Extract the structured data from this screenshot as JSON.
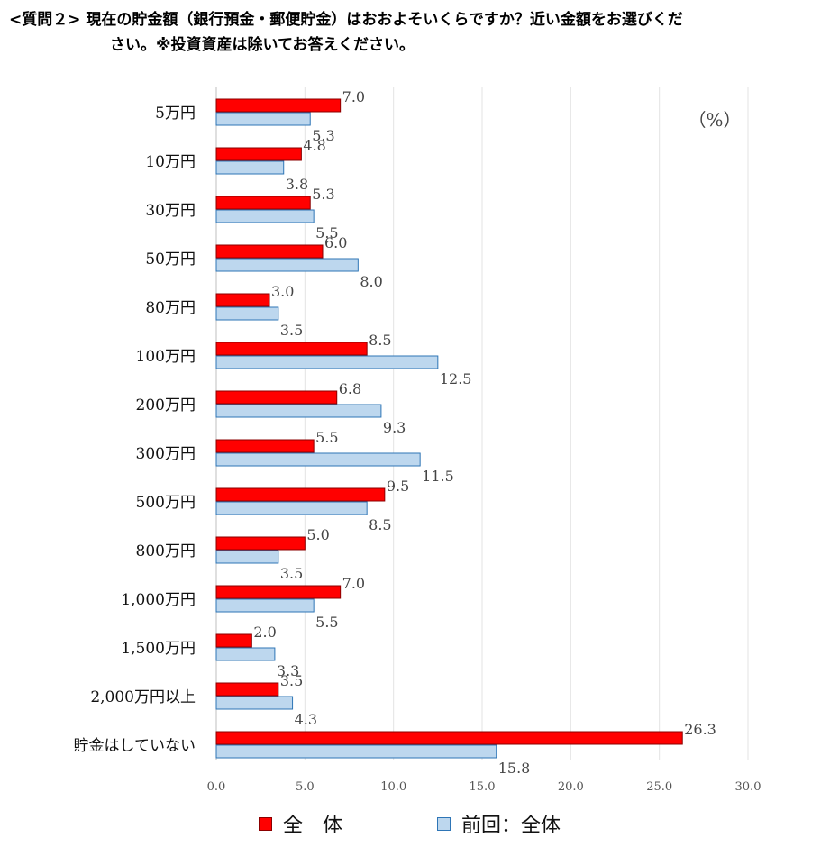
{
  "title": {
    "line1": "<質問２> 現在の貯金額（銀行預金・郵便貯金）はおおよそいくらですか？近い金額をお選びくだ",
    "line2": "さい。※投資資産は除いてお答えください。"
  },
  "chart_data": {
    "type": "bar",
    "orientation": "horizontal",
    "unit_label": "（%）",
    "categories": [
      "5万円",
      "10万円",
      "30万円",
      "50万円",
      "80万円",
      "100万円",
      "200万円",
      "300万円",
      "500万円",
      "800万円",
      "1,000万円",
      "1,500万円",
      "2,000万円以上",
      "貯金はしていない"
    ],
    "series": [
      {
        "name": "全　体",
        "color": "#ff0000",
        "border": "#8b0000",
        "values": [
          7.0,
          4.8,
          5.3,
          6.0,
          3.0,
          8.5,
          6.8,
          5.5,
          9.5,
          5.0,
          7.0,
          2.0,
          3.5,
          26.3
        ]
      },
      {
        "name": "前回：全体",
        "color": "#bdd7ee",
        "border": "#2e75b6",
        "values": [
          5.3,
          3.8,
          5.5,
          8.0,
          3.5,
          12.5,
          9.3,
          11.5,
          8.5,
          3.5,
          5.5,
          3.3,
          4.3,
          15.8
        ]
      }
    ],
    "xlim": [
      0,
      30
    ],
    "xticks": [
      "0.0",
      "5.0",
      "10.0",
      "15.0",
      "20.0",
      "25.0",
      "30.0"
    ],
    "grid": true,
    "legend": "bottom"
  }
}
